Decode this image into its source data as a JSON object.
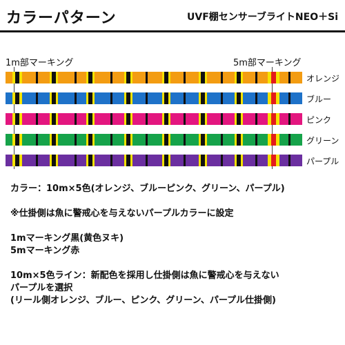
{
  "header": {
    "title": "カラーパターン",
    "product": "UVF棚センサーブライトNEO＋Si"
  },
  "markers": {
    "label_1m": "1m部マーキング",
    "label_5m": "5m部マーキング"
  },
  "bands": [
    {
      "label": "オレンジ",
      "color": "#f39c12"
    },
    {
      "label": "ブルー",
      "color": "#1e72c9"
    },
    {
      "label": "ピンク",
      "color": "#e3167f"
    },
    {
      "label": "グリーン",
      "color": "#16a34a"
    },
    {
      "label": "パープル",
      "color": "#6b2fa0"
    }
  ],
  "marking_colors": {
    "black": "#111111",
    "yellow": "#f5e300",
    "red": "#e31b1b"
  },
  "notes": {
    "line1": "カラー：10m×5色(オレンジ、ブルーピンク、グリーン、パープル)",
    "line2": "※仕掛側は魚に警戒心を与えないパープルカラーに設定",
    "line3": "1mマーキング黒(黄色ヌキ)",
    "line4": "5mマーキング赤",
    "line5": "10m×5色ライン：新配色を採用し仕掛側は魚に警戒心を与えない",
    "line6": "パープルを選択",
    "line7": "(リール側オレンジ、ブルー、ピンク、グリーン、パープル仕掛側)"
  }
}
